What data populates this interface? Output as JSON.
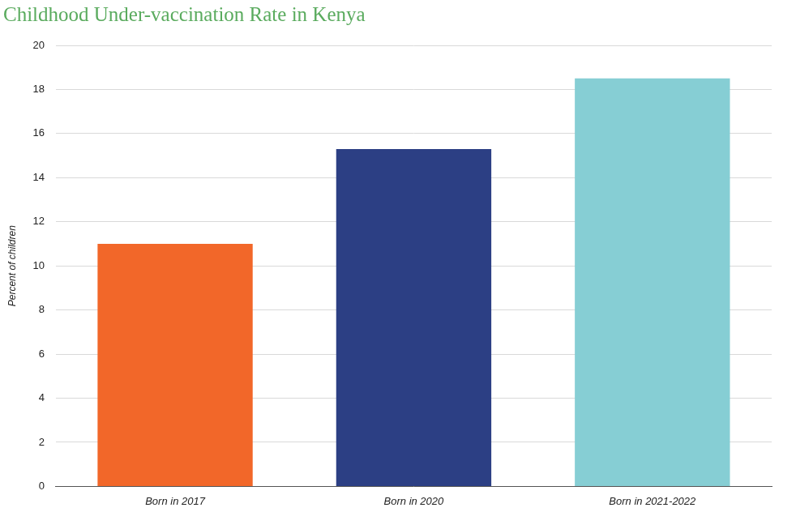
{
  "chart_data": {
    "type": "bar",
    "title": "Childhood Under-vaccination Rate in Kenya",
    "ylabel": "Percent of children",
    "categories": [
      "Born in 2017",
      "Born in 2020",
      "Born in 2021-2022"
    ],
    "values": [
      11,
      15.3,
      18.5
    ],
    "colors": [
      "#f26729",
      "#2c3f84",
      "#86ced4"
    ],
    "ylim": [
      0,
      20
    ],
    "yticks": [
      0,
      2,
      4,
      6,
      8,
      10,
      12,
      14,
      16,
      18,
      20
    ],
    "grid": true
  }
}
